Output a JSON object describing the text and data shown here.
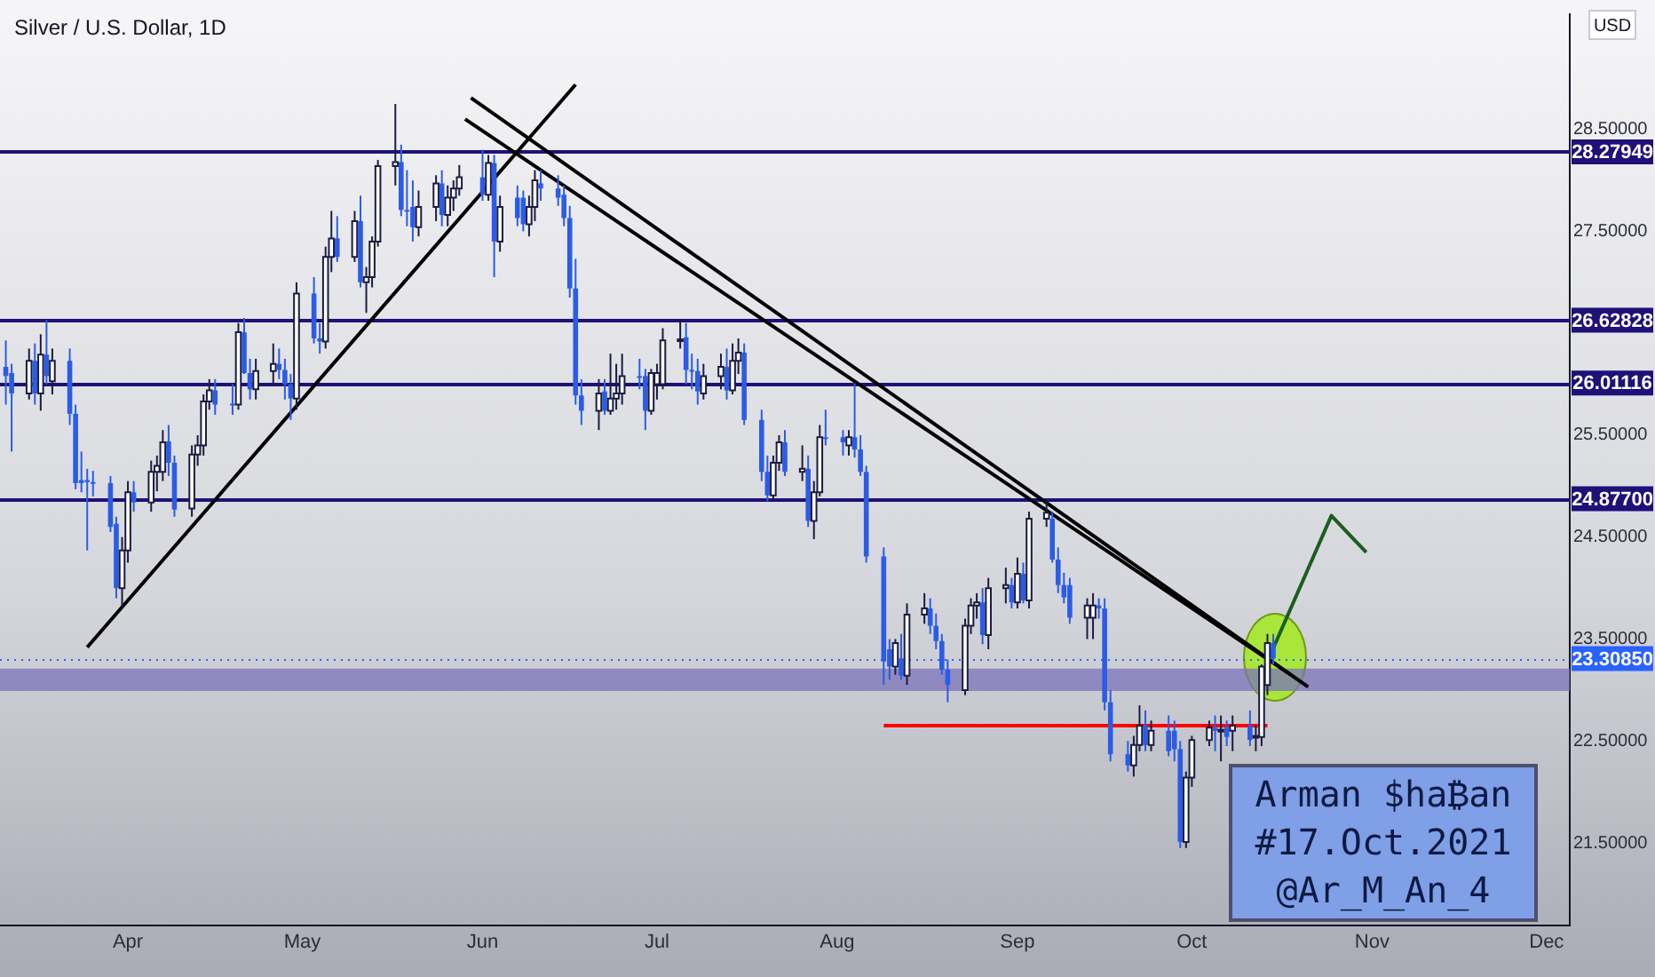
{
  "chart_data": {
    "type": "candlestick",
    "title": "Silver / U.S. Dollar, 1D",
    "ylabel": "USD",
    "x": [
      "2021-03-11",
      "2021-03-12",
      "2021-03-15",
      "2021-03-16",
      "2021-03-17",
      "2021-03-18",
      "2021-03-19",
      "2021-03-22",
      "2021-03-23",
      "2021-03-24",
      "2021-03-25",
      "2021-03-26",
      "2021-03-29",
      "2021-03-30",
      "2021-03-31",
      "2021-04-01",
      "2021-04-02",
      "2021-04-05",
      "2021-04-06",
      "2021-04-07",
      "2021-04-08",
      "2021-04-09",
      "2021-04-12",
      "2021-04-13",
      "2021-04-14",
      "2021-04-15",
      "2021-04-16",
      "2021-04-19",
      "2021-04-20",
      "2021-04-21",
      "2021-04-22",
      "2021-04-23",
      "2021-04-26",
      "2021-04-27",
      "2021-04-28",
      "2021-04-29",
      "2021-04-30",
      "2021-05-03",
      "2021-05-04",
      "2021-05-05",
      "2021-05-06",
      "2021-05-07",
      "2021-05-10",
      "2021-05-11",
      "2021-05-12",
      "2021-05-13",
      "2021-05-14",
      "2021-05-17",
      "2021-05-18",
      "2021-05-19",
      "2021-05-20",
      "2021-05-21",
      "2021-05-24",
      "2021-05-25",
      "2021-05-26",
      "2021-05-27",
      "2021-05-28",
      "2021-06-01",
      "2021-06-02",
      "2021-06-03",
      "2021-06-04",
      "2021-06-07",
      "2021-06-08",
      "2021-06-09",
      "2021-06-10",
      "2021-06-11",
      "2021-06-14",
      "2021-06-15",
      "2021-06-16",
      "2021-06-17",
      "2021-06-18",
      "2021-06-21",
      "2021-06-22",
      "2021-06-23",
      "2021-06-24",
      "2021-06-25",
      "2021-06-28",
      "2021-06-29",
      "2021-06-30",
      "2021-07-01",
      "2021-07-02",
      "2021-07-05",
      "2021-07-06",
      "2021-07-07",
      "2021-07-08",
      "2021-07-09",
      "2021-07-12",
      "2021-07-13",
      "2021-07-14",
      "2021-07-15",
      "2021-07-16",
      "2021-07-19",
      "2021-07-20",
      "2021-07-21",
      "2021-07-22",
      "2021-07-23",
      "2021-07-26",
      "2021-07-27",
      "2021-07-28",
      "2021-07-29",
      "2021-07-30",
      "2021-08-02",
      "2021-08-03",
      "2021-08-04",
      "2021-08-05",
      "2021-08-06",
      "2021-08-09",
      "2021-08-10",
      "2021-08-11",
      "2021-08-12",
      "2021-08-13",
      "2021-08-16",
      "2021-08-17",
      "2021-08-18",
      "2021-08-19",
      "2021-08-20",
      "2021-08-23",
      "2021-08-24",
      "2021-08-25",
      "2021-08-26",
      "2021-08-27",
      "2021-08-30",
      "2021-08-31",
      "2021-09-01",
      "2021-09-02",
      "2021-09-03",
      "2021-09-06",
      "2021-09-07",
      "2021-09-08",
      "2021-09-09",
      "2021-09-10",
      "2021-09-13",
      "2021-09-14",
      "2021-09-15",
      "2021-09-16",
      "2021-09-17",
      "2021-09-20",
      "2021-09-21",
      "2021-09-22",
      "2021-09-23",
      "2021-09-24",
      "2021-09-27",
      "2021-09-28",
      "2021-09-29",
      "2021-09-30",
      "2021-10-01",
      "2021-10-04",
      "2021-10-05",
      "2021-10-06",
      "2021-10-07",
      "2021-10-08",
      "2021-10-11",
      "2021-10-12",
      "2021-10-13",
      "2021-10-14",
      "2021-10-15"
    ],
    "ohlc": [
      [
        26.17,
        26.43,
        25.8,
        26.08
      ],
      [
        26.11,
        26.2,
        25.34,
        25.91
      ],
      [
        25.91,
        26.35,
        25.85,
        26.23
      ],
      [
        26.23,
        26.4,
        25.8,
        25.91
      ],
      [
        25.91,
        26.49,
        25.74,
        26.29
      ],
      [
        26.29,
        26.63,
        26.0,
        26.08
      ],
      [
        26.03,
        26.35,
        25.9,
        26.23
      ],
      [
        26.23,
        26.35,
        25.6,
        25.71
      ],
      [
        25.71,
        25.8,
        24.97,
        25.03
      ],
      [
        25.06,
        25.34,
        24.94,
        25.03
      ],
      [
        25.06,
        25.17,
        24.37,
        25.04
      ],
      [
        25.04,
        25.15,
        24.9,
        25.03
      ],
      [
        25.03,
        25.1,
        24.55,
        24.6
      ],
      [
        24.63,
        24.7,
        23.9,
        24.0
      ],
      [
        24.0,
        24.5,
        23.82,
        24.37
      ],
      [
        24.37,
        25.05,
        24.25,
        24.94
      ],
      [
        24.94,
        25.05,
        24.75,
        24.84
      ],
      [
        24.84,
        25.25,
        24.75,
        25.14
      ],
      [
        25.14,
        25.3,
        24.95,
        25.2
      ],
      [
        25.14,
        25.55,
        25.05,
        25.43
      ],
      [
        25.44,
        25.6,
        25.1,
        25.23
      ],
      [
        25.23,
        25.3,
        24.7,
        24.77
      ],
      [
        24.78,
        25.4,
        24.7,
        25.31
      ],
      [
        25.31,
        25.5,
        25.2,
        25.4
      ],
      [
        25.4,
        25.9,
        25.3,
        25.83
      ],
      [
        25.83,
        26.05,
        25.75,
        25.94
      ],
      [
        25.94,
        26.05,
        25.7,
        25.8
      ],
      [
        25.81,
        26.0,
        25.7,
        25.8
      ],
      [
        25.8,
        26.6,
        25.75,
        26.51
      ],
      [
        26.51,
        26.65,
        26.1,
        26.11
      ],
      [
        26.11,
        26.25,
        25.85,
        25.95
      ],
      [
        25.95,
        26.25,
        25.85,
        26.13
      ],
      [
        26.13,
        26.4,
        26.0,
        26.2
      ],
      [
        26.2,
        26.35,
        26.05,
        26.14
      ],
      [
        26.14,
        26.25,
        25.85,
        26.0
      ],
      [
        26.0,
        26.1,
        25.65,
        25.86
      ],
      [
        25.86,
        27.0,
        25.75,
        26.89
      ],
      [
        26.89,
        27.05,
        26.4,
        26.45
      ],
      [
        26.45,
        26.6,
        26.3,
        26.42
      ],
      [
        26.42,
        27.35,
        26.35,
        27.25
      ],
      [
        27.25,
        27.7,
        27.1,
        27.43
      ],
      [
        27.43,
        27.65,
        27.2,
        27.25
      ],
      [
        27.25,
        27.7,
        27.2,
        27.6
      ],
      [
        27.6,
        27.85,
        26.95,
        27.0
      ],
      [
        27.0,
        27.15,
        26.7,
        27.05
      ],
      [
        27.05,
        27.45,
        26.95,
        27.4
      ],
      [
        27.4,
        28.2,
        27.35,
        28.14
      ],
      [
        28.14,
        28.75,
        27.95,
        28.18
      ],
      [
        28.18,
        28.35,
        27.65,
        27.71
      ],
      [
        27.71,
        28.1,
        27.55,
        27.7
      ],
      [
        27.74,
        28.0,
        27.4,
        27.54
      ],
      [
        27.54,
        27.9,
        27.45,
        27.74
      ],
      [
        27.74,
        28.05,
        27.6,
        27.97
      ],
      [
        27.97,
        28.1,
        27.55,
        27.66
      ],
      [
        27.66,
        27.95,
        27.55,
        27.83
      ],
      [
        27.83,
        28.0,
        27.7,
        27.92
      ],
      [
        27.92,
        28.15,
        27.85,
        28.03
      ],
      [
        28.03,
        28.3,
        27.8,
        27.86
      ],
      [
        27.86,
        28.25,
        27.8,
        28.17
      ],
      [
        28.17,
        28.25,
        27.05,
        27.4
      ],
      [
        27.4,
        27.85,
        27.3,
        27.74
      ],
      [
        27.83,
        27.95,
        27.55,
        27.63
      ],
      [
        27.83,
        27.9,
        27.5,
        27.57
      ],
      [
        27.57,
        27.85,
        27.45,
        27.74
      ],
      [
        27.74,
        28.1,
        27.6,
        28.0
      ],
      [
        27.97,
        28.1,
        27.8,
        27.92
      ],
      [
        27.92,
        28.05,
        27.75,
        27.83
      ],
      [
        27.86,
        27.95,
        27.55,
        27.63
      ],
      [
        27.63,
        27.75,
        26.85,
        26.94
      ],
      [
        26.94,
        27.23,
        25.8,
        25.89
      ],
      [
        25.89,
        26.05,
        25.6,
        25.74
      ],
      [
        25.74,
        26.05,
        25.55,
        25.91
      ],
      [
        25.93,
        26.05,
        25.7,
        25.74
      ],
      [
        25.74,
        26.3,
        25.7,
        25.86
      ],
      [
        25.86,
        26.2,
        25.75,
        25.91
      ],
      [
        25.91,
        26.3,
        25.8,
        26.08
      ],
      [
        26.08,
        26.25,
        25.95,
        26.07
      ],
      [
        26.08,
        26.15,
        25.55,
        25.74
      ],
      [
        25.74,
        26.15,
        25.7,
        26.11
      ],
      [
        26.0,
        26.2,
        25.85,
        26.11
      ],
      [
        26.0,
        26.55,
        25.95,
        26.43
      ],
      [
        26.43,
        26.63,
        26.35,
        26.44
      ],
      [
        26.46,
        26.6,
        26.0,
        26.14
      ],
      [
        26.14,
        26.3,
        25.95,
        26.13
      ],
      [
        26.13,
        26.25,
        25.8,
        25.93
      ],
      [
        25.91,
        26.2,
        25.85,
        26.08
      ],
      [
        26.08,
        26.3,
        25.95,
        26.17
      ],
      [
        26.17,
        26.35,
        25.85,
        25.94
      ],
      [
        25.94,
        26.4,
        25.9,
        26.23
      ],
      [
        26.23,
        26.45,
        26.1,
        26.31
      ],
      [
        26.31,
        26.4,
        25.6,
        25.65
      ],
      [
        25.65,
        25.75,
        25.05,
        25.14
      ],
      [
        25.14,
        25.3,
        24.85,
        24.91
      ],
      [
        24.91,
        25.3,
        24.85,
        25.23
      ],
      [
        25.23,
        25.5,
        25.15,
        25.43
      ],
      [
        25.43,
        25.55,
        25.1,
        25.14
      ],
      [
        25.14,
        25.4,
        25.05,
        25.17
      ],
      [
        25.17,
        25.3,
        24.6,
        24.66
      ],
      [
        24.66,
        25.05,
        24.48,
        24.94
      ],
      [
        24.94,
        25.6,
        24.9,
        25.48
      ],
      [
        25.48,
        25.75,
        25.4,
        25.47
      ],
      [
        25.48,
        25.55,
        25.3,
        25.43
      ],
      [
        25.4,
        25.55,
        25.3,
        25.48
      ],
      [
        25.48,
        26.01,
        25.28,
        25.36
      ],
      [
        25.36,
        25.5,
        25.1,
        25.14
      ],
      [
        25.14,
        25.2,
        24.25,
        24.31
      ],
      [
        24.31,
        24.4,
        23.05,
        23.28
      ],
      [
        23.4,
        23.5,
        23.1,
        23.23
      ],
      [
        23.23,
        23.5,
        23.15,
        23.46
      ],
      [
        23.31,
        23.55,
        23.1,
        23.14
      ],
      [
        23.14,
        23.85,
        23.05,
        23.74
      ],
      [
        23.74,
        23.95,
        23.65,
        23.8
      ],
      [
        23.8,
        23.9,
        23.55,
        23.63
      ],
      [
        23.63,
        23.75,
        23.4,
        23.48
      ],
      [
        23.48,
        23.55,
        23.15,
        23.2
      ],
      [
        23.2,
        23.3,
        22.88,
        23.05
      ],
      [
        23.0,
        23.7,
        22.95,
        23.63
      ],
      [
        23.63,
        23.9,
        23.55,
        23.83
      ],
      [
        23.83,
        23.95,
        23.7,
        23.86
      ],
      [
        23.86,
        24.0,
        23.45,
        23.54
      ],
      [
        23.54,
        24.1,
        23.4,
        24.0
      ],
      [
        24.0,
        24.2,
        23.85,
        24.03
      ],
      [
        24.03,
        24.1,
        23.8,
        23.86
      ],
      [
        23.86,
        24.3,
        23.8,
        24.14
      ],
      [
        24.14,
        24.25,
        23.85,
        23.88
      ],
      [
        23.88,
        24.75,
        23.8,
        24.68
      ],
      [
        24.68,
        24.88,
        24.6,
        24.74
      ],
      [
        24.68,
        24.75,
        24.25,
        24.28
      ],
      [
        24.28,
        24.4,
        23.95,
        24.03
      ],
      [
        24.03,
        24.15,
        23.85,
        23.91
      ],
      [
        24.03,
        24.1,
        23.65,
        23.71
      ],
      [
        23.71,
        23.9,
        23.5,
        23.83
      ],
      [
        23.71,
        23.95,
        23.5,
        23.83
      ],
      [
        23.83,
        23.9,
        23.7,
        23.8
      ],
      [
        23.8,
        23.9,
        22.8,
        22.88
      ],
      [
        22.88,
        23.0,
        22.3,
        22.37
      ],
      [
        22.37,
        22.5,
        22.2,
        22.26
      ],
      [
        22.26,
        22.55,
        22.15,
        22.46
      ],
      [
        22.46,
        22.85,
        22.4,
        22.65
      ],
      [
        22.65,
        22.8,
        22.4,
        22.46
      ],
      [
        22.46,
        22.7,
        22.4,
        22.6
      ],
      [
        22.6,
        22.75,
        22.35,
        22.4
      ],
      [
        22.6,
        22.7,
        22.3,
        22.42
      ],
      [
        22.42,
        22.5,
        21.45,
        21.51
      ],
      [
        21.51,
        22.2,
        21.45,
        22.14
      ],
      [
        22.14,
        22.55,
        22.05,
        22.51
      ],
      [
        22.51,
        22.7,
        22.45,
        22.63
      ],
      [
        22.63,
        22.75,
        22.4,
        22.6
      ],
      [
        22.6,
        22.75,
        22.3,
        22.61
      ],
      [
        22.63,
        22.7,
        22.45,
        22.54
      ],
      [
        22.6,
        22.75,
        22.4,
        22.65
      ],
      [
        22.65,
        22.8,
        22.45,
        22.51
      ],
      [
        22.54,
        22.65,
        22.4,
        22.55
      ],
      [
        22.54,
        23.25,
        22.45,
        23.23
      ],
      [
        23.05,
        23.55,
        22.95,
        23.46
      ],
      [
        23.46,
        23.55,
        23.25,
        23.31
      ]
    ],
    "series": [
      {
        "type": "line",
        "color": "#000000",
        "x": [
          "2021-03-25",
          "2021-06-17"
        ],
        "values": [
          23.42,
          28.94
        ]
      },
      {
        "type": "line",
        "color": "#000000",
        "x": [
          "2021-05-30",
          "2021-10-21"
        ],
        "values": [
          28.81,
          23.03
        ]
      },
      {
        "type": "line",
        "color": "#000000",
        "x": [
          "2021-05-29",
          "2021-10-18"
        ],
        "values": [
          28.6,
          23.15
        ]
      },
      {
        "type": "line",
        "color": "#ff0000",
        "x": [
          "2021-08-09",
          "2021-10-14"
        ],
        "values": [
          22.65,
          22.65
        ]
      },
      {
        "type": "line",
        "color": "#1b5e20",
        "x": [
          "2021-10-14",
          "2021-10-25",
          "2021-10-31"
        ],
        "values": [
          23.28,
          24.71,
          24.35
        ]
      }
    ],
    "ref_lines": [
      {
        "axis": "y",
        "value": 28.27949,
        "label": "28.27949",
        "color": "#1f1178"
      },
      {
        "axis": "y",
        "value": 26.62828,
        "label": "26.62828",
        "color": "#1f1178"
      },
      {
        "axis": "y",
        "value": 26.01116,
        "label": "26.01116",
        "color": "#1f1178"
      },
      {
        "axis": "y",
        "value": 24.877,
        "label": "24.87700",
        "color": "#1f1178"
      },
      {
        "axis": "y",
        "value": 23.3085,
        "label": "23.30850",
        "color": "#2962ff",
        "line_style": "dotted"
      }
    ],
    "bands": [
      {
        "axis": "y",
        "from": 22.99,
        "to": 23.21,
        "color": "#7b73b8"
      }
    ],
    "annotations": [
      "Arman $ha₿an",
      "#17.Oct.2021",
      "@Ar_M_An_4"
    ],
    "xlim": [
      "2021-03-10",
      "2021-12-05"
    ],
    "xticks": [
      {
        "value": "2021-04-01",
        "label": "Apr"
      },
      {
        "value": "2021-05-01",
        "label": "May"
      },
      {
        "value": "2021-06-01",
        "label": "Jun"
      },
      {
        "value": "2021-07-01",
        "label": "Jul"
      },
      {
        "value": "2021-08-01",
        "label": "Aug"
      },
      {
        "value": "2021-09-01",
        "label": "Sep"
      },
      {
        "value": "2021-10-01",
        "label": "Oct"
      },
      {
        "value": "2021-11-01",
        "label": "Nov"
      },
      {
        "value": "2021-12-01",
        "label": "Dec"
      }
    ],
    "ylim": [
      20.69,
      29.63
    ],
    "yticks": [
      {
        "value": 21.5,
        "label": "21.50000"
      },
      {
        "value": 22.5,
        "label": "22.50000"
      },
      {
        "value": 23.5,
        "label": "23.50000"
      },
      {
        "value": 24.5,
        "label": "24.50000"
      },
      {
        "value": 25.5,
        "label": "25.50000"
      },
      {
        "value": 27.5,
        "label": "27.50000"
      },
      {
        "value": 28.5,
        "label": "28.50000"
      }
    ]
  }
}
